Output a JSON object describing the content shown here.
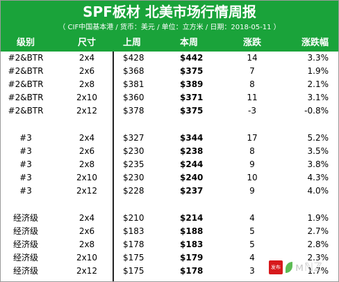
{
  "header": {
    "title": "SPF板材 北美市场行情周报",
    "subtitle": "（ CIF中国基本港 / 货币：美元 / 单位：立方米 / 日期：2018-05-11 ）"
  },
  "columns": [
    "级别",
    "尺寸",
    "上周",
    "本周",
    "涨跌",
    "涨跌幅"
  ],
  "rows": [
    {
      "grade": "#2&BTR",
      "size": "2x4",
      "last": "$428",
      "this": "$442",
      "change": "14",
      "pct": "3.3%"
    },
    {
      "grade": "#2&BTR",
      "size": "2x6",
      "last": "$368",
      "this": "$375",
      "change": "7",
      "pct": "1.9%"
    },
    {
      "grade": "#2&BTR",
      "size": "2x8",
      "last": "$381",
      "this": "$389",
      "change": "8",
      "pct": "2.1%"
    },
    {
      "grade": "#2&BTR",
      "size": "2x10",
      "last": "$360",
      "this": "$371",
      "change": "11",
      "pct": "3.1%"
    },
    {
      "grade": "#2&BTR",
      "size": "2x12",
      "last": "$378",
      "this": "$375",
      "change": "-3",
      "pct": "-0.8%"
    },
    {
      "grade": "#3",
      "size": "2x4",
      "last": "$327",
      "this": "$344",
      "change": "17",
      "pct": "5.2%"
    },
    {
      "grade": "#3",
      "size": "2x6",
      "last": "$230",
      "this": "$238",
      "change": "8",
      "pct": "3.5%"
    },
    {
      "grade": "#3",
      "size": "2x8",
      "last": "$235",
      "this": "$244",
      "change": "9",
      "pct": "3.8%"
    },
    {
      "grade": "#3",
      "size": "2x10",
      "last": "$230",
      "this": "$240",
      "change": "10",
      "pct": "4.3%"
    },
    {
      "grade": "#3",
      "size": "2x12",
      "last": "$228",
      "this": "$237",
      "change": "9",
      "pct": "4.0%"
    },
    {
      "grade": "经济级",
      "size": "2x4",
      "last": "$210",
      "this": "$214",
      "change": "4",
      "pct": "1.9%"
    },
    {
      "grade": "经济级",
      "size": "2x6",
      "last": "$183",
      "this": "$188",
      "change": "5",
      "pct": "2.7%"
    },
    {
      "grade": "经济级",
      "size": "2x8",
      "last": "$178",
      "this": "$183",
      "change": "5",
      "pct": "2.8%"
    },
    {
      "grade": "经济级",
      "size": "2x10",
      "last": "$175",
      "this": "$179",
      "change": "4",
      "pct": "2.3%"
    },
    {
      "grade": "经济级",
      "size": "2x12",
      "last": "$175",
      "this": "$178",
      "change": "3",
      "pct": "1.7%"
    }
  ],
  "watermark": {
    "badge": "发布",
    "text": "ᴍℕℤ"
  }
}
